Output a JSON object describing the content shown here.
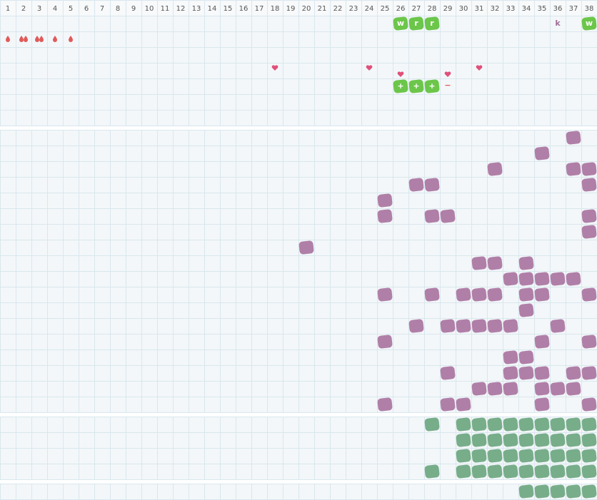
{
  "header": {
    "columns": [
      1,
      2,
      3,
      4,
      5,
      6,
      7,
      8,
      9,
      10,
      11,
      12,
      13,
      14,
      15,
      16,
      17,
      18,
      19,
      20,
      21,
      22,
      23,
      24,
      25,
      26,
      27,
      28,
      29,
      30,
      31,
      32,
      33,
      34,
      35,
      36,
      37,
      38
    ]
  },
  "markers": {
    "letters": [
      "w",
      "r",
      "r",
      "k",
      "w"
    ],
    "pluses": [
      "+",
      "+",
      "+"
    ],
    "minus": "−"
  }
}
